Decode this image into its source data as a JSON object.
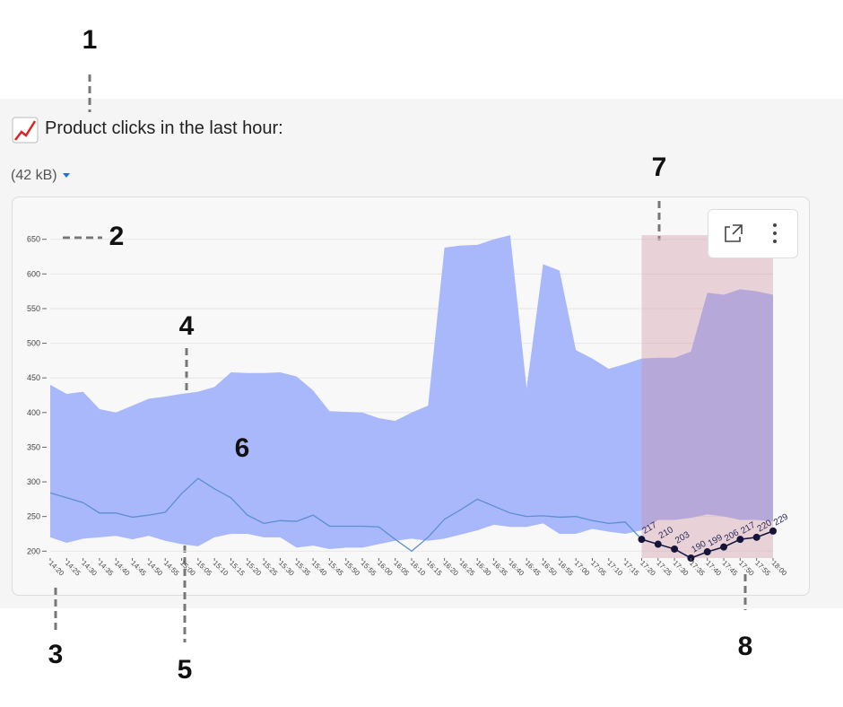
{
  "title": "Product clicks in the last hour:",
  "size_label": "(42 kB)",
  "annotations": [
    "1",
    "2",
    "3",
    "4",
    "5",
    "6",
    "7",
    "8"
  ],
  "chart_data": {
    "type": "line",
    "categories": [
      "14:20",
      "14:25",
      "14:30",
      "14:35",
      "14:40",
      "14:45",
      "14:50",
      "14:55",
      "15:00",
      "15:05",
      "15:10",
      "15:15",
      "15:20",
      "15:25",
      "15:30",
      "15:35",
      "15:40",
      "15:45",
      "15:50",
      "15:55",
      "16:00",
      "16:05",
      "16:10",
      "16:15",
      "16:20",
      "16:25",
      "16:30",
      "16:35",
      "16:40",
      "16:45",
      "16:50",
      "16:55",
      "17:00",
      "17:05",
      "17:10",
      "17:15",
      "17:20",
      "17:25",
      "17:30",
      "17:35",
      "17:40",
      "17:45",
      "17:50",
      "17:55",
      "18:00"
    ],
    "line": {
      "color": "#5b8fcf",
      "values": [
        284,
        277,
        270,
        255,
        255,
        249,
        252,
        256,
        283,
        305,
        290,
        277,
        252,
        240,
        244,
        243,
        252,
        236,
        236,
        236,
        235,
        217,
        200,
        220,
        246,
        260,
        275,
        265,
        255,
        250,
        251,
        249,
        250,
        244,
        240,
        242,
        217,
        210,
        203,
        190,
        199,
        206,
        217,
        220,
        229
      ]
    },
    "band": {
      "color": "#a9b8fb",
      "upper": [
        440,
        427,
        430,
        405,
        400,
        410,
        420,
        423,
        427,
        430,
        437,
        458,
        457,
        457,
        458,
        452,
        432,
        402,
        401,
        400,
        392,
        388,
        400,
        410,
        638,
        641,
        642,
        650,
        656,
        435,
        614,
        605,
        490,
        478,
        463,
        470,
        478,
        479,
        479,
        488,
        573,
        570,
        578,
        575,
        570
      ],
      "lower": [
        220,
        212,
        218,
        220,
        222,
        217,
        222,
        215,
        210,
        207,
        220,
        225,
        225,
        220,
        220,
        205,
        208,
        203,
        205,
        205,
        210,
        215,
        218,
        215,
        218,
        224,
        230,
        238,
        235,
        235,
        240,
        225,
        225,
        232,
        228,
        225,
        230,
        245,
        245,
        248,
        253,
        250,
        245,
        245,
        243
      ]
    },
    "highlight": {
      "range": [
        "17:20",
        "18:00"
      ],
      "color": "rgba(205,140,155,0.35)",
      "marker_color": "#15153a"
    },
    "ylim": [
      190,
      660
    ],
    "yticks": [
      200,
      250,
      300,
      350,
      400,
      450,
      500,
      550,
      600,
      650
    ],
    "grid": true
  }
}
